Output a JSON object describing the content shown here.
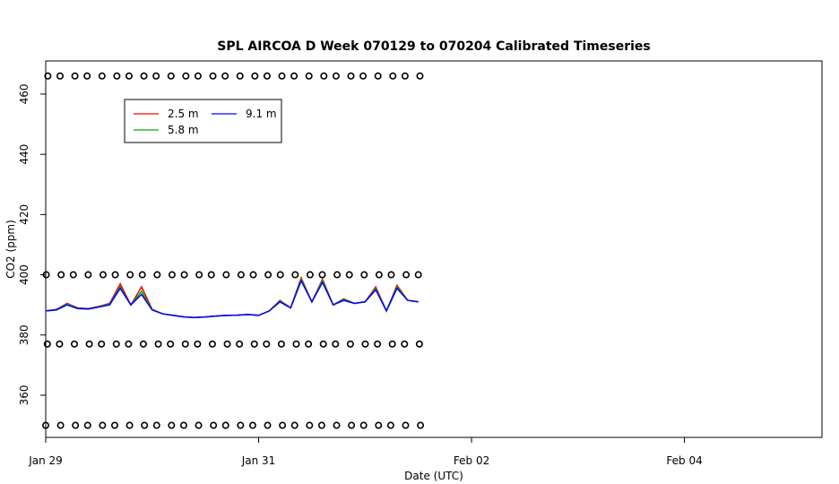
{
  "chart_data": {
    "type": "line",
    "title": "SPL AIRCOA D  Week 070129 to 070204  Calibrated Timeseries",
    "xlabel": "Date (UTC)",
    "ylabel": "CO2 (ppm)",
    "xlim": [
      "2007-01-29T00:00",
      "2007-02-05T07:00"
    ],
    "ylim": [
      346,
      471
    ],
    "x_ticks": [
      "2007-01-29T00:00",
      "2007-01-31T00:00",
      "2007-02-02T00:00",
      "2007-02-04T00:00"
    ],
    "x_tick_labels": [
      "Jan 29",
      "Jan 31",
      "Feb 02",
      "Feb 04"
    ],
    "y_ticks": [
      360,
      380,
      400,
      420,
      440,
      460
    ],
    "legend": {
      "position": "top-left",
      "entries": [
        "2.5 m",
        "5.8 m",
        "9.1 m"
      ]
    },
    "colors": {
      "2.5 m": "#ff0000",
      "5.8 m": "#00aa00",
      "9.1 m": "#0000ff",
      "calibration": "#000000"
    },
    "series": [
      {
        "name": "2.5 m",
        "x": [
          "2007-01-29T00:00",
          "2007-01-29T02:24",
          "2007-01-29T04:48",
          "2007-01-29T07:12",
          "2007-01-29T09:36",
          "2007-01-29T12:00",
          "2007-01-29T14:24",
          "2007-01-29T16:48",
          "2007-01-29T19:12",
          "2007-01-29T21:36",
          "2007-01-30T00:00",
          "2007-01-30T02:24",
          "2007-01-30T04:48",
          "2007-01-30T07:12",
          "2007-01-30T09:36",
          "2007-01-30T12:00",
          "2007-01-30T14:24",
          "2007-01-30T16:48",
          "2007-01-30T19:12",
          "2007-01-30T21:36",
          "2007-01-31T00:00",
          "2007-01-31T02:24",
          "2007-01-31T04:48",
          "2007-01-31T07:12",
          "2007-01-31T09:36",
          "2007-01-31T12:00",
          "2007-01-31T14:24",
          "2007-01-31T16:48",
          "2007-01-31T19:12",
          "2007-01-31T21:36",
          "2007-02-01T00:00",
          "2007-02-01T02:24",
          "2007-02-01T04:48",
          "2007-02-01T07:12",
          "2007-02-01T09:36",
          "2007-02-01T12:00"
        ],
        "values": [
          388.0,
          388.5,
          390.5,
          389.0,
          388.8,
          389.5,
          390.5,
          397.0,
          390.0,
          396.0,
          388.5,
          387.0,
          386.5,
          386.0,
          385.8,
          386.0,
          386.3,
          386.5,
          386.6,
          386.8,
          386.5,
          388.0,
          391.5,
          389.0,
          399.0,
          391.0,
          398.5,
          390.0,
          392.0,
          390.5,
          391.0,
          396.0,
          388.0,
          396.5,
          391.5,
          391.0
        ]
      },
      {
        "name": "5.8 m",
        "x": [
          "2007-01-29T00:00",
          "2007-01-29T02:24",
          "2007-01-29T04:48",
          "2007-01-29T07:12",
          "2007-01-29T09:36",
          "2007-01-29T12:00",
          "2007-01-29T14:24",
          "2007-01-29T16:48",
          "2007-01-29T19:12",
          "2007-01-29T21:36",
          "2007-01-30T00:00",
          "2007-01-30T02:24",
          "2007-01-30T04:48",
          "2007-01-30T07:12",
          "2007-01-30T09:36",
          "2007-01-30T12:00",
          "2007-01-30T14:24",
          "2007-01-30T16:48",
          "2007-01-30T19:12",
          "2007-01-30T21:36",
          "2007-01-31T00:00",
          "2007-01-31T02:24",
          "2007-01-31T04:48",
          "2007-01-31T07:12",
          "2007-01-31T09:36",
          "2007-01-31T12:00",
          "2007-01-31T14:24",
          "2007-01-31T16:48",
          "2007-01-31T19:12",
          "2007-01-31T21:36",
          "2007-02-01T00:00",
          "2007-02-01T02:24",
          "2007-02-01T04:48",
          "2007-02-01T07:12",
          "2007-02-01T09:36",
          "2007-02-01T12:00"
        ],
        "values": [
          388.0,
          388.4,
          390.3,
          388.9,
          388.7,
          389.4,
          390.3,
          396.0,
          390.0,
          394.5,
          388.4,
          387.0,
          386.5,
          386.0,
          385.8,
          386.0,
          386.3,
          386.5,
          386.6,
          386.8,
          386.5,
          388.0,
          391.3,
          389.0,
          398.5,
          391.0,
          398.0,
          390.0,
          391.8,
          390.5,
          391.0,
          395.5,
          388.0,
          396.0,
          391.5,
          391.0
        ]
      },
      {
        "name": "9.1 m",
        "x": [
          "2007-01-29T00:00",
          "2007-01-29T02:24",
          "2007-01-29T04:48",
          "2007-01-29T07:12",
          "2007-01-29T09:36",
          "2007-01-29T12:00",
          "2007-01-29T14:24",
          "2007-01-29T16:48",
          "2007-01-29T19:12",
          "2007-01-29T21:36",
          "2007-01-30T00:00",
          "2007-01-30T02:24",
          "2007-01-30T04:48",
          "2007-01-30T07:12",
          "2007-01-30T09:36",
          "2007-01-30T12:00",
          "2007-01-30T14:24",
          "2007-01-30T16:48",
          "2007-01-30T19:12",
          "2007-01-30T21:36",
          "2007-01-31T00:00",
          "2007-01-31T02:24",
          "2007-01-31T04:48",
          "2007-01-31T07:12",
          "2007-01-31T09:36",
          "2007-01-31T12:00",
          "2007-01-31T14:24",
          "2007-01-31T16:48",
          "2007-01-31T19:12",
          "2007-01-31T21:36",
          "2007-02-01T00:00",
          "2007-02-01T02:24",
          "2007-02-01T04:48",
          "2007-02-01T07:12",
          "2007-02-01T09:36",
          "2007-02-01T12:00"
        ],
        "values": [
          388.0,
          388.3,
          390.0,
          388.8,
          388.6,
          389.3,
          390.0,
          395.5,
          390.0,
          393.5,
          388.3,
          387.0,
          386.5,
          386.0,
          385.8,
          386.0,
          386.3,
          386.5,
          386.6,
          386.8,
          386.5,
          388.0,
          391.0,
          389.0,
          398.0,
          391.0,
          397.5,
          390.0,
          391.5,
          390.5,
          391.0,
          395.0,
          388.0,
          395.5,
          391.5,
          391.0
        ]
      }
    ],
    "calibration_points": {
      "levels": [
        350,
        377,
        400,
        466
      ],
      "x_start": "2007-01-29T00:00",
      "x_end": "2007-02-01T12:00",
      "count_per_level": 28
    }
  }
}
